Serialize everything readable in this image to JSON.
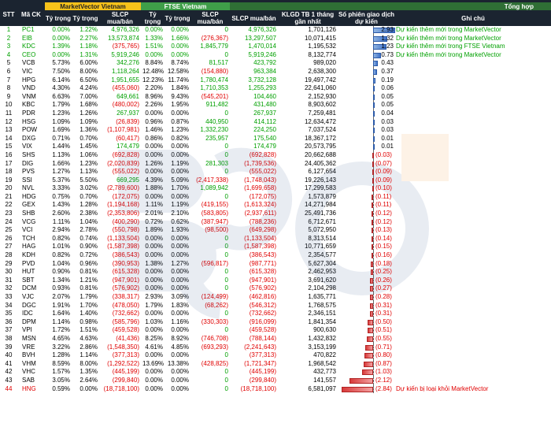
{
  "headers": {
    "stt": "STT",
    "ma_ck": "Mã CK",
    "group_mv": "MarketVector Vietnam",
    "group_ftse": "FTSE Vietnam",
    "group_tong": "Tổng hợp",
    "ty_trong": "Tỷ trọng",
    "slcp": "SLCP mua/bán",
    "klgd": "KLGD TB 1 tháng gần nhất",
    "so_phien": "Số phiên giao dịch dự kiến",
    "ghi_chu": "Ghi chú"
  },
  "colors": {
    "green": "#00a000",
    "red": "#e00000",
    "black": "#000000",
    "blue_bar": "#3d71c9",
    "red_bar": "#d83a3a"
  },
  "rows": [
    {
      "stt": "1",
      "ma": "PC1",
      "mv1": "0.00%",
      "mv2": "1.22%",
      "mv3": "4,976,326",
      "f1": "0.00%",
      "f2": "0.00%",
      "f3": "0",
      "t1": "4,976,326",
      "t2": "1,701,126",
      "sp": "2.93",
      "sp_num": 2.93,
      "note": "Dự kiến thêm mới trong MarketVector",
      "color": "green"
    },
    {
      "stt": "2",
      "ma": "EIB",
      "mv1": "0.00%",
      "mv2": "2.27%",
      "mv3": "13,573,874",
      "f1": "1.33%",
      "f2": "1.66%",
      "f3": "(276,367)",
      "t1": "13,297,507",
      "t2": "10,071,415",
      "sp": "1.32",
      "sp_num": 1.32,
      "note": "Dự kiến thêm mới trong MarketVector",
      "color": "green"
    },
    {
      "stt": "3",
      "ma": "KDC",
      "mv1": "1.39%",
      "mv2": "1.18%",
      "mv3": "(375,765)",
      "f1": "1.51%",
      "f2": "0.00%",
      "f3": "1,845,779",
      "t1": "1,470,014",
      "t2": "1,195,532",
      "sp": "1.23",
      "sp_num": 1.23,
      "note": "Dự kiến thêm mới trong FTSE Vietnam",
      "color": "green"
    },
    {
      "stt": "4",
      "ma": "CEO",
      "mv1": "0.00%",
      "mv2": "1.31%",
      "mv3": "5,919,246",
      "f1": "0.00%",
      "f2": "0.00%",
      "f3": "0",
      "t1": "5,919,246",
      "t2": "8,132,774",
      "sp": "0.73",
      "sp_num": 0.73,
      "note": "Dự kiến thêm mới trong MarketVector",
      "color": "green"
    },
    {
      "stt": "5",
      "ma": "VCB",
      "mv1": "5.73%",
      "mv2": "6.00%",
      "mv3": "342,276",
      "f1": "8.84%",
      "f2": "8.74%",
      "f3": "81,517",
      "t1": "423,792",
      "t2": "989,020",
      "sp": "0.43",
      "sp_num": 0.43,
      "note": "",
      "color": "black"
    },
    {
      "stt": "6",
      "ma": "VIC",
      "mv1": "7.50%",
      "mv2": "8.00%",
      "mv3": "1,118,264",
      "f1": "12.48%",
      "f2": "12.58%",
      "f3": "(154,880)",
      "t1": "963,384",
      "t2": "2,638,300",
      "sp": "0.37",
      "sp_num": 0.37,
      "note": "",
      "color": "black"
    },
    {
      "stt": "7",
      "ma": "HPG",
      "mv1": "6.14%",
      "mv2": "6.50%",
      "mv3": "1,951,655",
      "f1": "12.23%",
      "f2": "11.74%",
      "f3": "1,780,474",
      "t1": "3,732,128",
      "t2": "19,497,742",
      "sp": "0.19",
      "sp_num": 0.19,
      "note": "",
      "color": "black"
    },
    {
      "stt": "8",
      "ma": "VND",
      "mv1": "4.30%",
      "mv2": "4.24%",
      "mv3": "(455,060)",
      "f1": "2.20%",
      "f2": "1.84%",
      "f3": "1,710,353",
      "t1": "1,255,293",
      "t2": "22,641,060",
      "sp": "0.06",
      "sp_num": 0.06,
      "note": "",
      "color": "black"
    },
    {
      "stt": "9",
      "ma": "VNM",
      "mv1": "6.63%",
      "mv2": "7.00%",
      "mv3": "649,661",
      "f1": "8.96%",
      "f2": "9.43%",
      "f3": "(545,201)",
      "t1": "104,460",
      "t2": "2,152,930",
      "sp": "0.05",
      "sp_num": 0.05,
      "note": "",
      "color": "black"
    },
    {
      "stt": "10",
      "ma": "KBC",
      "mv1": "1.79%",
      "mv2": "1.68%",
      "mv3": "(480,002)",
      "f1": "2.26%",
      "f2": "1.95%",
      "f3": "911,482",
      "t1": "431,480",
      "t2": "8,903,602",
      "sp": "0.05",
      "sp_num": 0.05,
      "note": "",
      "color": "black"
    },
    {
      "stt": "11",
      "ma": "PDR",
      "mv1": "1.23%",
      "mv2": "1.26%",
      "mv3": "267,937",
      "f1": "0.00%",
      "f2": "0.00%",
      "f3": "0",
      "t1": "267,937",
      "t2": "7,259,481",
      "sp": "0.04",
      "sp_num": 0.04,
      "note": "",
      "color": "black"
    },
    {
      "stt": "12",
      "ma": "HSG",
      "mv1": "1.09%",
      "mv2": "1.09%",
      "mv3": "(26,839)",
      "f1": "0.96%",
      "f2": "0.87%",
      "f3": "440,950",
      "t1": "414,112",
      "t2": "12,634,472",
      "sp": "0.03",
      "sp_num": 0.03,
      "note": "",
      "color": "black"
    },
    {
      "stt": "13",
      "ma": "POW",
      "mv1": "1.69%",
      "mv2": "1.36%",
      "mv3": "(1,107,981)",
      "f1": "1.46%",
      "f2": "1.23%",
      "f3": "1,332,230",
      "t1": "224,250",
      "t2": "7,037,524",
      "sp": "0.03",
      "sp_num": 0.03,
      "note": "",
      "color": "black"
    },
    {
      "stt": "14",
      "ma": "DXG",
      "mv1": "0.71%",
      "mv2": "0.70%",
      "mv3": "(60,417)",
      "f1": "0.86%",
      "f2": "0.82%",
      "f3": "235,957",
      "t1": "175,540",
      "t2": "18,367,172",
      "sp": "0.01",
      "sp_num": 0.01,
      "note": "",
      "color": "black"
    },
    {
      "stt": "15",
      "ma": "VIX",
      "mv1": "1.44%",
      "mv2": "1.45%",
      "mv3": "174,479",
      "f1": "0.00%",
      "f2": "0.00%",
      "f3": "0",
      "t1": "174,479",
      "t2": "20,573,795",
      "sp": "0.01",
      "sp_num": 0.01,
      "note": "",
      "color": "black"
    },
    {
      "stt": "16",
      "ma": "SHS",
      "mv1": "1.13%",
      "mv2": "1.06%",
      "mv3": "(692,828)",
      "f1": "0.00%",
      "f2": "0.00%",
      "f3": "0",
      "t1": "(692,828)",
      "t2": "20,662,688",
      "sp": "(0.03)",
      "sp_num": -0.03,
      "note": "",
      "color": "red"
    },
    {
      "stt": "17",
      "ma": "DIG",
      "mv1": "1.66%",
      "mv2": "1.23%",
      "mv3": "(2,020,839)",
      "f1": "1.26%",
      "f2": "1.19%",
      "f3": "281,303",
      "t1": "(1,739,536)",
      "t2": "24,405,362",
      "sp": "(0.07)",
      "sp_num": -0.07,
      "note": "",
      "color": "red"
    },
    {
      "stt": "18",
      "ma": "PVS",
      "mv1": "1.27%",
      "mv2": "1.13%",
      "mv3": "(555,022)",
      "f1": "0.00%",
      "f2": "0.00%",
      "f3": "0",
      "t1": "(555,022)",
      "t2": "6,127,654",
      "sp": "(0.09)",
      "sp_num": -0.09,
      "note": "",
      "color": "red"
    },
    {
      "stt": "19",
      "ma": "SSI",
      "mv1": "5.37%",
      "mv2": "5.50%",
      "mv3": "669,295",
      "f1": "4.39%",
      "f2": "5.09%",
      "f3": "(2,417,338)",
      "t1": "(1,748,043)",
      "t2": "19,226,143",
      "sp": "(0.09)",
      "sp_num": -0.09,
      "note": "",
      "color": "red"
    },
    {
      "stt": "20",
      "ma": "NVL",
      "mv1": "3.33%",
      "mv2": "3.02%",
      "mv3": "(2,789,600)",
      "f1": "1.88%",
      "f2": "1.70%",
      "f3": "1,089,942",
      "t1": "(1,699,658)",
      "t2": "17,299,583",
      "sp": "(0.10)",
      "sp_num": -0.1,
      "note": "",
      "color": "red"
    },
    {
      "stt": "21",
      "ma": "HDG",
      "mv1": "0.75%",
      "mv2": "0.70%",
      "mv3": "(172,075)",
      "f1": "0.00%",
      "f2": "0.00%",
      "f3": "0",
      "t1": "(172,075)",
      "t2": "1,573,879",
      "sp": "(0.11)",
      "sp_num": -0.11,
      "note": "",
      "color": "red"
    },
    {
      "stt": "22",
      "ma": "GEX",
      "mv1": "1.43%",
      "mv2": "1.28%",
      "mv3": "(1,194,168)",
      "f1": "1.11%",
      "f2": "1.19%",
      "f3": "(419,155)",
      "t1": "(1,613,324)",
      "t2": "14,271,984",
      "sp": "(0.11)",
      "sp_num": -0.11,
      "note": "",
      "color": "red"
    },
    {
      "stt": "23",
      "ma": "SHB",
      "mv1": "2.60%",
      "mv2": "2.38%",
      "mv3": "(2,353,806)",
      "f1": "2.01%",
      "f2": "2.10%",
      "f3": "(583,805)",
      "t1": "(2,937,611)",
      "t2": "25,491,736",
      "sp": "(0.12)",
      "sp_num": -0.12,
      "note": "",
      "color": "red"
    },
    {
      "stt": "24",
      "ma": "VCG",
      "mv1": "1.11%",
      "mv2": "1.04%",
      "mv3": "(400,290)",
      "f1": "0.72%",
      "f2": "0.62%",
      "f3": "(387,947)",
      "t1": "(788,236)",
      "t2": "6,712,671",
      "sp": "(0.12)",
      "sp_num": -0.12,
      "note": "",
      "color": "red"
    },
    {
      "stt": "25",
      "ma": "VCI",
      "mv1": "2.94%",
      "mv2": "2.78%",
      "mv3": "(550,798)",
      "f1": "1.89%",
      "f2": "1.93%",
      "f3": "(98,500)",
      "t1": "(649,298)",
      "t2": "5,072,950",
      "sp": "(0.13)",
      "sp_num": -0.13,
      "note": "",
      "color": "red"
    },
    {
      "stt": "26",
      "ma": "TCH",
      "mv1": "0.82%",
      "mv2": "0.74%",
      "mv3": "(1,133,504)",
      "f1": "0.00%",
      "f2": "0.00%",
      "f3": "0",
      "t1": "(1,133,504)",
      "t2": "8,313,514",
      "sp": "(0.14)",
      "sp_num": -0.14,
      "note": "",
      "color": "red"
    },
    {
      "stt": "27",
      "ma": "HAG",
      "mv1": "1.01%",
      "mv2": "0.90%",
      "mv3": "(1,587,398)",
      "f1": "0.00%",
      "f2": "0.00%",
      "f3": "0",
      "t1": "(1,587,398)",
      "t2": "10,771,659",
      "sp": "(0.15)",
      "sp_num": -0.15,
      "note": "",
      "color": "red"
    },
    {
      "stt": "28",
      "ma": "KDH",
      "mv1": "0.82%",
      "mv2": "0.72%",
      "mv3": "(386,543)",
      "f1": "0.00%",
      "f2": "0.00%",
      "f3": "0",
      "t1": "(386,543)",
      "t2": "2,354,577",
      "sp": "(0.16)",
      "sp_num": -0.16,
      "note": "",
      "color": "red"
    },
    {
      "stt": "29",
      "ma": "PVD",
      "mv1": "1.04%",
      "mv2": "0.96%",
      "mv3": "(390,953)",
      "f1": "1.38%",
      "f2": "1.27%",
      "f3": "(596,817)",
      "t1": "(987,771)",
      "t2": "5,627,304",
      "sp": "(0.18)",
      "sp_num": -0.18,
      "note": "",
      "color": "red"
    },
    {
      "stt": "30",
      "ma": "HUT",
      "mv1": "0.90%",
      "mv2": "0.81%",
      "mv3": "(615,328)",
      "f1": "0.00%",
      "f2": "0.00%",
      "f3": "0",
      "t1": "(615,328)",
      "t2": "2,462,953",
      "sp": "(0.25)",
      "sp_num": -0.25,
      "note": "",
      "color": "red"
    },
    {
      "stt": "31",
      "ma": "SBT",
      "mv1": "1.34%",
      "mv2": "1.21%",
      "mv3": "(947,901)",
      "f1": "0.00%",
      "f2": "0.00%",
      "f3": "0",
      "t1": "(947,901)",
      "t2": "3,691,620",
      "sp": "(0.26)",
      "sp_num": -0.26,
      "note": "",
      "color": "red"
    },
    {
      "stt": "32",
      "ma": "DCM",
      "mv1": "0.93%",
      "mv2": "0.81%",
      "mv3": "(576,902)",
      "f1": "0.00%",
      "f2": "0.00%",
      "f3": "0",
      "t1": "(576,902)",
      "t2": "2,104,298",
      "sp": "(0.27)",
      "sp_num": -0.27,
      "note": "",
      "color": "red"
    },
    {
      "stt": "33",
      "ma": "VJC",
      "mv1": "2.07%",
      "mv2": "1.79%",
      "mv3": "(338,317)",
      "f1": "2.93%",
      "f2": "3.09%",
      "f3": "(124,499)",
      "t1": "(462,816)",
      "t2": "1,635,771",
      "sp": "(0.28)",
      "sp_num": -0.28,
      "note": "",
      "color": "red"
    },
    {
      "stt": "34",
      "ma": "DGC",
      "mv1": "1.91%",
      "mv2": "1.70%",
      "mv3": "(478,050)",
      "f1": "1.79%",
      "f2": "1.83%",
      "f3": "(68,262)",
      "t1": "(546,312)",
      "t2": "1,768,575",
      "sp": "(0.31)",
      "sp_num": -0.31,
      "note": "",
      "color": "red"
    },
    {
      "stt": "35",
      "ma": "IDC",
      "mv1": "1.64%",
      "mv2": "1.40%",
      "mv3": "(732,662)",
      "f1": "0.00%",
      "f2": "0.00%",
      "f3": "0",
      "t1": "(732,662)",
      "t2": "2,346,151",
      "sp": "(0.31)",
      "sp_num": -0.31,
      "note": "",
      "color": "red"
    },
    {
      "stt": "36",
      "ma": "DPM",
      "mv1": "1.14%",
      "mv2": "0.98%",
      "mv3": "(585,796)",
      "f1": "1.03%",
      "f2": "1.16%",
      "f3": "(330,303)",
      "t1": "(916,099)",
      "t2": "1,841,354",
      "sp": "(0.50)",
      "sp_num": -0.5,
      "note": "",
      "color": "red"
    },
    {
      "stt": "37",
      "ma": "VPI",
      "mv1": "1.72%",
      "mv2": "1.51%",
      "mv3": "(459,528)",
      "f1": "0.00%",
      "f2": "0.00%",
      "f3": "0",
      "t1": "(459,528)",
      "t2": "900,630",
      "sp": "(0.51)",
      "sp_num": -0.51,
      "note": "",
      "color": "red"
    },
    {
      "stt": "38",
      "ma": "MSN",
      "mv1": "4.65%",
      "mv2": "4.63%",
      "mv3": "(41,436)",
      "f1": "8.25%",
      "f2": "8.92%",
      "f3": "(746,708)",
      "t1": "(788,144)",
      "t2": "1,432,832",
      "sp": "(0.55)",
      "sp_num": -0.55,
      "note": "",
      "color": "red"
    },
    {
      "stt": "39",
      "ma": "VRE",
      "mv1": "3.22%",
      "mv2": "2.86%",
      "mv3": "(1,548,350)",
      "f1": "4.61%",
      "f2": "4.85%",
      "f3": "(693,293)",
      "t1": "(2,241,643)",
      "t2": "3,153,199",
      "sp": "(0.71)",
      "sp_num": -0.71,
      "note": "",
      "color": "red"
    },
    {
      "stt": "40",
      "ma": "BVH",
      "mv1": "1.28%",
      "mv2": "1.14%",
      "mv3": "(377,313)",
      "f1": "0.00%",
      "f2": "0.00%",
      "f3": "0",
      "t1": "(377,313)",
      "t2": "470,822",
      "sp": "(0.80)",
      "sp_num": -0.8,
      "note": "",
      "color": "red"
    },
    {
      "stt": "41",
      "ma": "VHM",
      "mv1": "8.59%",
      "mv2": "8.00%",
      "mv3": "(1,292,522)",
      "f1": "13.69%",
      "f2": "13.38%",
      "f3": "(428,825)",
      "t1": "(1,721,347)",
      "t2": "1,968,542",
      "sp": "(0.87)",
      "sp_num": -0.87,
      "note": "",
      "color": "red"
    },
    {
      "stt": "42",
      "ma": "VHC",
      "mv1": "1.57%",
      "mv2": "1.35%",
      "mv3": "(445,199)",
      "f1": "0.00%",
      "f2": "0.00%",
      "f3": "0",
      "t1": "(445,199)",
      "t2": "432,773",
      "sp": "(1.03)",
      "sp_num": -1.03,
      "note": "",
      "color": "red"
    },
    {
      "stt": "43",
      "ma": "SAB",
      "mv1": "3.05%",
      "mv2": "2.64%",
      "mv3": "(299,840)",
      "f1": "0.00%",
      "f2": "0.00%",
      "f3": "0",
      "t1": "(299,840)",
      "t2": "141,557",
      "sp": "(2.12)",
      "sp_num": -2.12,
      "note": "",
      "color": "red"
    },
    {
      "stt": "44",
      "ma": "HNG",
      "mv1": "0.59%",
      "mv2": "0.00%",
      "mv3": "(18,718,100)",
      "f1": "0.00%",
      "f2": "0.00%",
      "f3": "0",
      "t1": "(18,718,100)",
      "t2": "6,581,097",
      "sp": "(2.84)",
      "sp_num": -2.84,
      "note": "Dự kiến bị loại khỏi MarketVector",
      "color": "red"
    }
  ]
}
